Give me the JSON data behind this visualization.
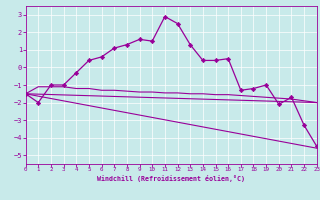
{
  "xlabel": "Windchill (Refroidissement éolien,°C)",
  "xlim": [
    0,
    23
  ],
  "ylim": [
    -5.5,
    3.5
  ],
  "xticks": [
    0,
    1,
    2,
    3,
    4,
    5,
    6,
    7,
    8,
    9,
    10,
    11,
    12,
    13,
    14,
    15,
    16,
    17,
    18,
    19,
    20,
    21,
    22,
    23
  ],
  "yticks": [
    -5,
    -4,
    -3,
    -2,
    -1,
    0,
    1,
    2,
    3
  ],
  "bg_color": "#c8eaea",
  "grid_color": "#ffffff",
  "line_color": "#990099",
  "line1_x": [
    0,
    1,
    2,
    3,
    4,
    5,
    6,
    7,
    8,
    9,
    10,
    11,
    12,
    13,
    14,
    15,
    16,
    17,
    18,
    19,
    20,
    21,
    22,
    23
  ],
  "line1_y": [
    -1.5,
    -2.0,
    -1.0,
    -1.0,
    -0.3,
    0.4,
    0.6,
    1.1,
    1.3,
    1.6,
    1.5,
    2.9,
    2.5,
    1.3,
    0.4,
    0.4,
    0.5,
    -1.3,
    -1.2,
    -1.0,
    -2.1,
    -1.7,
    -3.3,
    -4.5
  ],
  "line2_x": [
    0,
    1,
    2,
    3,
    4,
    5,
    6,
    7,
    8,
    9,
    10,
    11,
    12,
    13,
    14,
    15,
    16,
    17,
    18,
    19,
    20,
    21,
    22,
    23
  ],
  "line2_y": [
    -1.5,
    -1.1,
    -1.1,
    -1.1,
    -1.2,
    -1.2,
    -1.3,
    -1.3,
    -1.35,
    -1.4,
    -1.4,
    -1.45,
    -1.45,
    -1.5,
    -1.5,
    -1.55,
    -1.55,
    -1.6,
    -1.65,
    -1.7,
    -1.75,
    -1.8,
    -1.9,
    -2.0
  ],
  "line3_x": [
    0,
    23
  ],
  "line3_y": [
    -1.5,
    -4.6
  ],
  "line4_x": [
    0,
    23
  ],
  "line4_y": [
    -1.5,
    -2.0
  ]
}
